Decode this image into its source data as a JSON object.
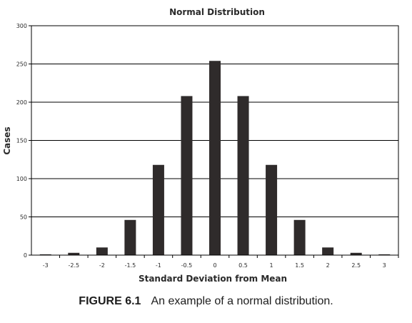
{
  "chart_data": {
    "type": "bar",
    "title": "Normal Distribution",
    "xlabel": "Standard Deviation from Mean",
    "ylabel": "Cases",
    "categories": [
      "-3",
      "-2.5",
      "-2",
      "-1.5",
      "-1",
      "-0.5",
      "0",
      "0.5",
      "1",
      "1.5",
      "2",
      "2.5",
      "3"
    ],
    "values": [
      1,
      3,
      10,
      46,
      118,
      208,
      254,
      208,
      118,
      46,
      10,
      3,
      1
    ],
    "ylim": [
      0,
      300
    ],
    "yticks": [
      0,
      50,
      100,
      150,
      200,
      250,
      300
    ],
    "grid": true,
    "legend": "none",
    "bar_color": "#2f2b2b"
  },
  "caption": {
    "label": "FIGURE 6.1",
    "text": "An example of a normal distribution."
  }
}
